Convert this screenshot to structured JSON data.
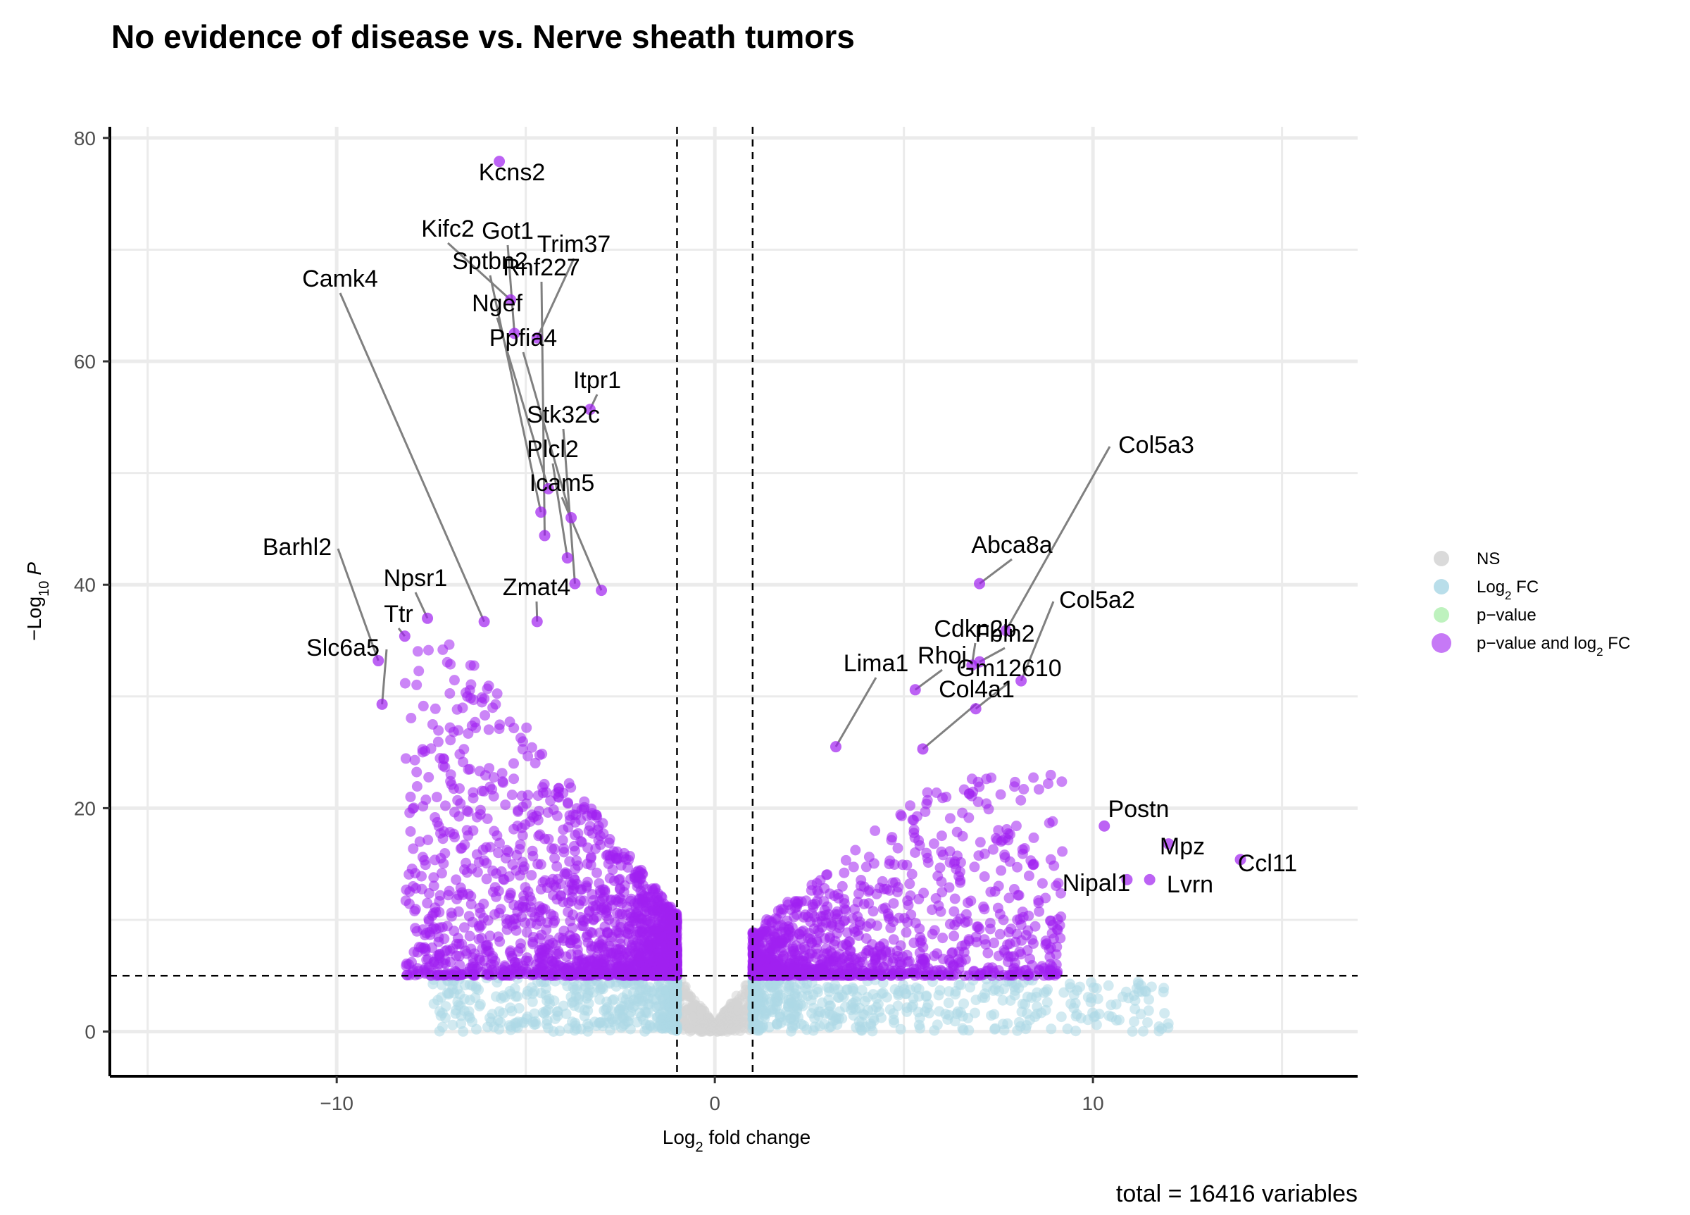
{
  "chart_data": {
    "type": "scatter",
    "title": "No evidence of disease vs. Nerve sheath tumors",
    "xlabel": "Log2 fold change",
    "ylabel": "-Log10 P",
    "xlim": [
      -16,
      17
    ],
    "ylim": [
      -4,
      81
    ],
    "x_ticks": [
      -10,
      0,
      10
    ],
    "y_ticks": [
      0,
      20,
      40,
      60,
      80
    ],
    "grid": true,
    "fc_cutoff": 1,
    "p_cutoff_neglog10": 5,
    "caption": "total = 16416 variables",
    "legend": {
      "position": "right",
      "entries": [
        {
          "label": "NS",
          "color": "#d3d3d3"
        },
        {
          "label": "Log2 FC",
          "color": "#add8e6"
        },
        {
          "label": "p−value",
          "color": "#b3f0b3"
        },
        {
          "label": "p−value and log2 FC",
          "color": "#a020f0"
        }
      ]
    },
    "labeled_genes": [
      {
        "gene": "Kcns2",
        "x": -5.7,
        "y": 77.9
      },
      {
        "gene": "Kifc2",
        "x": -5.4,
        "y": 65.5
      },
      {
        "gene": "Got1",
        "x": -5.3,
        "y": 62.5
      },
      {
        "gene": "Trim37",
        "x": -4.7,
        "y": 62.1
      },
      {
        "gene": "Sptbn2",
        "x": -4.6,
        "y": 46.5
      },
      {
        "gene": "Rnf227",
        "x": -4.5,
        "y": 44.4
      },
      {
        "gene": "Camk4",
        "x": -6.1,
        "y": 36.7
      },
      {
        "gene": "Ngef",
        "x": -4.4,
        "y": 48.6
      },
      {
        "gene": "Ppfia4",
        "x": -3.8,
        "y": 46.0
      },
      {
        "gene": "Itpr1",
        "x": -3.3,
        "y": 55.7
      },
      {
        "gene": "Stk32c",
        "x": -3.7,
        "y": 40.1
      },
      {
        "gene": "Plcl2",
        "x": -3.9,
        "y": 42.4
      },
      {
        "gene": "Icam5",
        "x": -3.0,
        "y": 39.5
      },
      {
        "gene": "Zmat4",
        "x": -4.7,
        "y": 36.7
      },
      {
        "gene": "Barhl2",
        "x": -8.9,
        "y": 33.2
      },
      {
        "gene": "Npsr1",
        "x": -7.6,
        "y": 37.0
      },
      {
        "gene": "Ttr",
        "x": -8.2,
        "y": 35.4
      },
      {
        "gene": "Slc6a5",
        "x": -8.8,
        "y": 29.3
      },
      {
        "gene": "Col5a3",
        "x": 7.7,
        "y": 35.9
      },
      {
        "gene": "Abca8a",
        "x": 7.0,
        "y": 40.1
      },
      {
        "gene": "Col5a2",
        "x": 8.1,
        "y": 31.4
      },
      {
        "gene": "Cdkn2b",
        "x": 6.8,
        "y": 32.8
      },
      {
        "gene": "Fbln2",
        "x": 7.0,
        "y": 33.1
      },
      {
        "gene": "Rhoj",
        "x": 5.3,
        "y": 30.6
      },
      {
        "gene": "Gm12610",
        "x": 6.9,
        "y": 28.9
      },
      {
        "gene": "Col4a1",
        "x": 5.5,
        "y": 25.3
      },
      {
        "gene": "Lima1",
        "x": 3.2,
        "y": 25.5
      },
      {
        "gene": "Postn",
        "x": 10.3,
        "y": 18.4
      },
      {
        "gene": "Mpz",
        "x": 12.0,
        "y": 16.8
      },
      {
        "gene": "Ccl11",
        "x": 13.9,
        "y": 15.4
      },
      {
        "gene": "Nipal1",
        "x": 10.9,
        "y": 13.6
      },
      {
        "gene": "Lvrn",
        "x": 11.5,
        "y": 13.6
      }
    ]
  }
}
